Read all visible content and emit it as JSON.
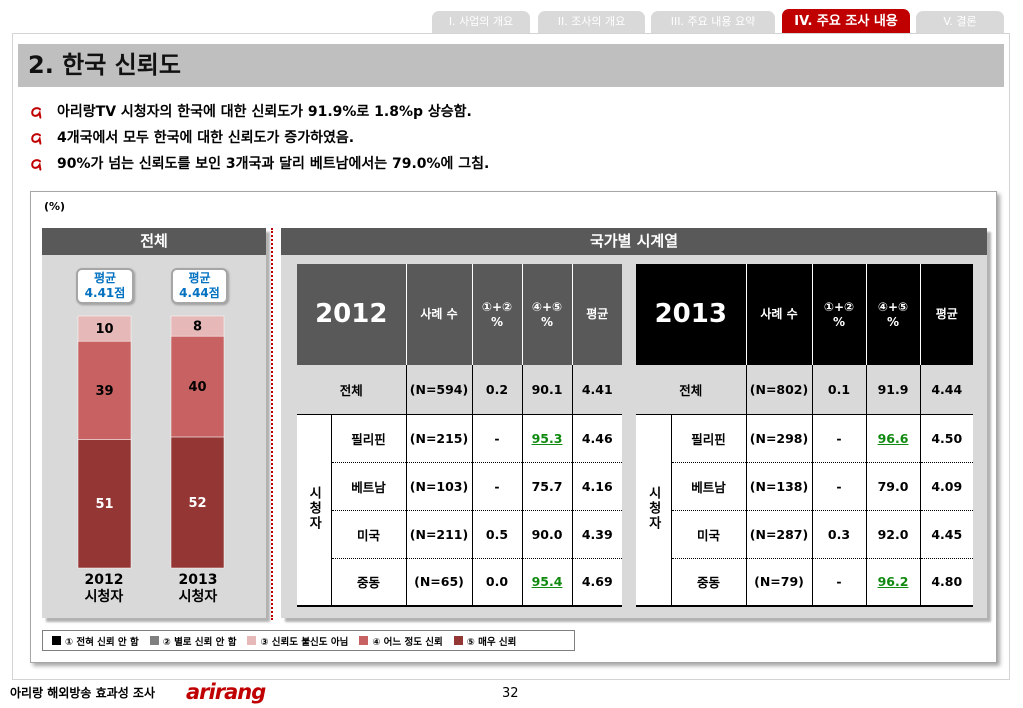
{
  "nav_tabs": [
    {
      "label": "I. 사업의 개요",
      "active": false
    },
    {
      "label": "II. 조사의 개요",
      "active": false
    },
    {
      "label": "III. 주요 내용 요약",
      "active": false
    },
    {
      "label": "IV. 주요 조사 내용",
      "active": true
    },
    {
      "label": "V. 결론",
      "active": false
    }
  ],
  "page_title": "2. 한국 신뢰도",
  "bullets": [
    "아리랑TV 시청자의 한국에 대한 신뢰도가 91.9%로 1.8%p 상승함.",
    "4개국에서 모두 한국에 대한 신뢰도가 증가하였음.",
    "90%가 넘는 신뢰도를 보인 3개국과 달리 베트남에서는 79.0%에 그침."
  ],
  "unit_label": "(%)",
  "country_panel": {
    "header": "국가별 시계열"
  },
  "chart_data": {
    "type": "bar",
    "stacked": true,
    "title": "전체",
    "categories": [
      "2012\n시청자",
      "2013\n시청자"
    ],
    "series": [
      {
        "name": "① 전혀 신뢰 안 함",
        "color": "#000000"
      },
      {
        "name": "② 별로 신뢰 안 함",
        "color": "#7f7f7f"
      },
      {
        "name": "③ 신뢰도 불신도 아님",
        "color": "#e6b9b8",
        "label_color": "#000000",
        "values": [
          10,
          8
        ]
      },
      {
        "name": "④ 어느 정도 신뢰",
        "color": "#c86262",
        "label_color": "#000000",
        "values": [
          39,
          40
        ]
      },
      {
        "name": "⑤ 매우 신뢰",
        "color": "#943634",
        "label_color": "#ffffff",
        "values": [
          51,
          52
        ]
      }
    ],
    "annotations": [
      {
        "label": "평균",
        "value": "4.41점"
      },
      {
        "label": "평균",
        "value": "4.44점"
      }
    ],
    "ylim": [
      0,
      100
    ],
    "grid": false,
    "legend_position": "bottom"
  },
  "tables": [
    {
      "year": "2012",
      "header_bg": "#595959",
      "columns": [
        "사례 수",
        "①+②\n%",
        "④+⑤\n%",
        "평균"
      ],
      "total_row": {
        "label": "전체",
        "cells": [
          "(N=594)",
          "0.2",
          "90.1",
          "4.41"
        ]
      },
      "group_label": "시청자",
      "rows": [
        {
          "label": "필리핀",
          "cells": [
            "(N=215)",
            "-",
            "95.3",
            "4.46"
          ],
          "highlight": [
            2
          ]
        },
        {
          "label": "베트남",
          "cells": [
            "(N=103)",
            "-",
            "75.7",
            "4.16"
          ],
          "highlight": []
        },
        {
          "label": "미국",
          "cells": [
            "(N=211)",
            "0.5",
            "90.0",
            "4.39"
          ],
          "highlight": []
        },
        {
          "label": "중동",
          "cells": [
            "(N=65)",
            "0.0",
            "95.4",
            "4.69"
          ],
          "highlight": [
            2
          ]
        }
      ]
    },
    {
      "year": "2013",
      "header_bg": "#000000",
      "columns": [
        "사례 수",
        "①+②\n%",
        "④+⑤\n%",
        "평균"
      ],
      "total_row": {
        "label": "전체",
        "cells": [
          "(N=802)",
          "0.1",
          "91.9",
          "4.44"
        ]
      },
      "group_label": "시청자",
      "rows": [
        {
          "label": "필리핀",
          "cells": [
            "(N=298)",
            "-",
            "96.6",
            "4.50"
          ],
          "highlight": [
            2
          ]
        },
        {
          "label": "베트남",
          "cells": [
            "(N=138)",
            "-",
            "79.0",
            "4.09"
          ],
          "highlight": []
        },
        {
          "label": "미국",
          "cells": [
            "(N=287)",
            "0.3",
            "92.0",
            "4.45"
          ],
          "highlight": []
        },
        {
          "label": "중동",
          "cells": [
            "(N=79)",
            "-",
            "96.2",
            "4.80"
          ],
          "highlight": [
            2
          ]
        }
      ]
    }
  ],
  "footer": {
    "survey_title": "아리랑 해외방송 효과성 조사",
    "logo_text": "arirang",
    "page_number": "32"
  },
  "colors": {
    "accent": "#c00000",
    "panel_header": "#595959",
    "panel_body": "#d9d9d9",
    "callout_text": "#0070c0",
    "highlight_value": "#108a10"
  }
}
